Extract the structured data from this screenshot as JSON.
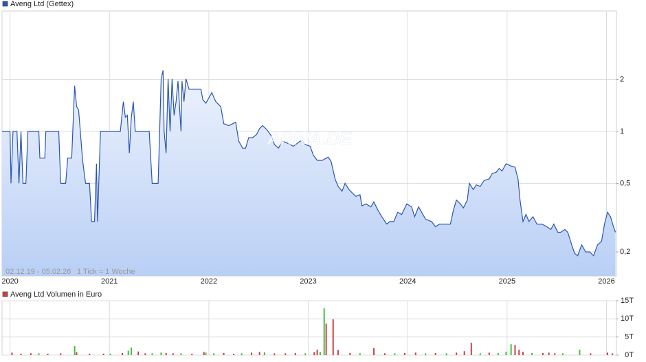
{
  "chart_data": [
    {
      "type": "line",
      "log_scale": true,
      "grid": true,
      "watermark": "ARIVA.DE",
      "annotations": [
        "02.12.19 - 05.02.26",
        "1 Tick = 1 Woche"
      ],
      "xlim": [
        2019.92,
        2026.1
      ],
      "xticks": [
        2020,
        2021,
        2022,
        2023,
        2024,
        2025,
        2026
      ],
      "ylim": [
        0.145,
        5
      ],
      "yticks": [
        {
          "value": 0.2,
          "label": "0,2"
        },
        {
          "value": 0.5,
          "label": "0,5"
        },
        1,
        2
      ],
      "x": [
        2019.92,
        2020.0,
        2020.01,
        2020.03,
        2020.07,
        2020.09,
        2020.11,
        2020.13,
        2020.16,
        2020.18,
        2020.29,
        2020.3,
        2020.35,
        2020.36,
        2020.49,
        2020.51,
        2020.56,
        2020.58,
        2020.62,
        2020.65,
        2020.67,
        2020.69,
        2020.73,
        2020.76,
        2020.8,
        2020.82,
        2020.85,
        2020.87,
        2020.88,
        2020.91,
        2021.11,
        2021.14,
        2021.16,
        2021.18,
        2021.2,
        2021.22,
        2021.24,
        2021.26,
        2021.4,
        2021.43,
        2021.49,
        2021.52,
        2021.54,
        2021.55,
        2021.57,
        2021.59,
        2021.61,
        2021.63,
        2021.65,
        2021.67,
        2021.69,
        2021.72,
        2021.73,
        2021.75,
        2021.77,
        2021.8,
        2021.92,
        2021.94,
        2021.97,
        2022.03,
        2022.07,
        2022.12,
        2022.15,
        2022.2,
        2022.27,
        2022.3,
        2022.34,
        2022.37,
        2022.4,
        2022.44,
        2022.48,
        2022.51,
        2022.54,
        2022.58,
        2022.63,
        2022.66,
        2022.7,
        2022.74,
        2022.8,
        2022.85,
        2022.92,
        2022.97,
        2023.02,
        2023.05,
        2023.09,
        2023.14,
        2023.2,
        2023.23,
        2023.27,
        2023.3,
        2023.34,
        2023.37,
        2023.41,
        2023.46,
        2023.48,
        2023.52,
        2023.54,
        2023.58,
        2023.63,
        2023.66,
        2023.7,
        2023.74,
        2023.79,
        2023.82,
        2023.86,
        2023.88,
        2023.9,
        2023.94,
        2023.99,
        2024.04,
        2024.07,
        2024.11,
        2024.14,
        2024.18,
        2024.24,
        2024.28,
        2024.32,
        2024.36,
        2024.43,
        2024.46,
        2024.49,
        2024.53,
        2024.56,
        2024.6,
        2024.62,
        2024.66,
        2024.69,
        2024.73,
        2024.77,
        2024.82,
        2024.85,
        2024.89,
        2024.92,
        2024.95,
        2024.99,
        2025.04,
        2025.08,
        2025.11,
        2025.13,
        2025.16,
        2025.19,
        2025.22,
        2025.26,
        2025.3,
        2025.35,
        2025.4,
        2025.44,
        2025.47,
        2025.51,
        2025.54,
        2025.58,
        2025.61,
        2025.65,
        2025.68,
        2025.71,
        2025.75,
        2025.79,
        2025.83,
        2025.87,
        2025.91,
        2025.95,
        2025.98,
        2026.01,
        2026.04,
        2026.07,
        2026.09
      ],
      "series": [
        {
          "name": "Aveng Ltd (Gettex)",
          "color": "#2a55b5",
          "values": [
            1,
            1,
            0.5,
            1,
            1,
            0.5,
            1,
            0.5,
            0.5,
            1,
            1,
            0.7,
            0.7,
            1,
            1,
            0.5,
            0.5,
            0.7,
            0.7,
            1.84,
            1.39,
            1.33,
            0.68,
            0.5,
            0.5,
            0.3,
            0.3,
            0.65,
            0.3,
            1,
            1,
            1.49,
            1.21,
            1.24,
            0.75,
            1.21,
            1.49,
            1,
            1,
            0.5,
            0.5,
            2.02,
            2.26,
            1,
            0.75,
            2.02,
            1,
            2.02,
            1.24,
            1.49,
            1.96,
            1,
            1.96,
            1.49,
            2.02,
            1.76,
            1.76,
            1.53,
            1.46,
            1.68,
            1.49,
            1.39,
            1.11,
            1.08,
            1.13,
            0.88,
            0.8,
            0.8,
            0.92,
            0.92,
            0.96,
            1.04,
            1.08,
            1.03,
            0.94,
            0.84,
            0.8,
            0.88,
            0.85,
            0.82,
            0.88,
            0.84,
            0.82,
            0.73,
            0.68,
            0.68,
            0.71,
            0.67,
            0.53,
            0.48,
            0.45,
            0.5,
            0.46,
            0.43,
            0.42,
            0.43,
            0.37,
            0.38,
            0.365,
            0.39,
            0.35,
            0.32,
            0.29,
            0.3,
            0.3,
            0.32,
            0.34,
            0.33,
            0.38,
            0.365,
            0.32,
            0.365,
            0.34,
            0.31,
            0.3,
            0.28,
            0.29,
            0.29,
            0.29,
            0.35,
            0.4,
            0.38,
            0.36,
            0.4,
            0.5,
            0.46,
            0.49,
            0.48,
            0.52,
            0.53,
            0.57,
            0.58,
            0.61,
            0.59,
            0.65,
            0.63,
            0.62,
            0.53,
            0.4,
            0.3,
            0.33,
            0.3,
            0.32,
            0.29,
            0.29,
            0.28,
            0.27,
            0.29,
            0.26,
            0.26,
            0.27,
            0.26,
            0.22,
            0.196,
            0.19,
            0.22,
            0.2,
            0.2,
            0.19,
            0.22,
            0.23,
            0.29,
            0.34,
            0.32,
            0.28,
            0.26
          ]
        }
      ]
    },
    {
      "type": "bar",
      "grid": true,
      "xlim": [
        2019.92,
        2026.1
      ],
      "xticks": [
        2020,
        2021,
        2022,
        2023,
        2024,
        2025,
        2026
      ],
      "ylim": [
        0,
        15000
      ],
      "yticks": [
        {
          "value": 0,
          "label": "0T"
        },
        {
          "value": 5000,
          "label": "5T"
        },
        {
          "value": 10000,
          "label": "10T"
        },
        {
          "value": 15000,
          "label": "15T"
        }
      ],
      "x": [
        2020.02,
        2020.11,
        2020.21,
        2020.29,
        2020.38,
        2020.51,
        2020.65,
        2020.67,
        2020.8,
        2020.94,
        2021.01,
        2021.13,
        2021.19,
        2021.22,
        2021.29,
        2021.36,
        2021.43,
        2021.52,
        2021.57,
        2021.64,
        2021.72,
        2021.83,
        2021.95,
        2021.97,
        2022.05,
        2022.15,
        2022.25,
        2022.33,
        2022.43,
        2022.51,
        2022.56,
        2022.66,
        2022.77,
        2022.87,
        2022.97,
        2023.06,
        2023.09,
        2023.12,
        2023.16,
        2023.18,
        2023.25,
        2023.3,
        2023.42,
        2023.52,
        2023.66,
        2023.77,
        2023.87,
        2023.97,
        2024.08,
        2024.18,
        2024.28,
        2024.39,
        2024.49,
        2024.57,
        2024.64,
        2024.73,
        2024.82,
        2024.91,
        2024.99,
        2025.04,
        2025.08,
        2025.12,
        2025.16,
        2025.25,
        2025.36,
        2025.42,
        2025.48,
        2025.56,
        2025.73,
        2025.84,
        2026.01,
        2026.06
      ],
      "series": [
        {
          "name": "Aveng Ltd Volumen in Euro",
          "color": "#d04040",
          "values": [
            700,
            400,
            500,
            500,
            400,
            500,
            2500,
            800,
            400,
            400,
            400,
            600,
            1200,
            2100,
            1000,
            500,
            500,
            700,
            600,
            500,
            500,
            400,
            900,
            700,
            500,
            600,
            400,
            500,
            700,
            900,
            800,
            500,
            500,
            600,
            500,
            800,
            1500,
            900,
            12900,
            8700,
            9900,
            1400,
            600,
            500,
            1900,
            500,
            500,
            600,
            700,
            500,
            600,
            500,
            700,
            1100,
            3400,
            500,
            700,
            600,
            900,
            3000,
            2800,
            1500,
            900,
            600,
            600,
            700,
            500,
            500,
            1500,
            500,
            700,
            500
          ],
          "bar_colors": [
            "#d04040",
            "#d04040",
            "#d04040",
            "#40c040",
            "#d04040",
            "#d04040",
            "#40c040",
            "#d04040",
            "#d04040",
            "#d04040",
            "#40c040",
            "#d04040",
            "#40c040",
            "#40c040",
            "#d04040",
            "#d04040",
            "#40c040",
            "#40c040",
            "#d04040",
            "#d04040",
            "#40c040",
            "#d04040",
            "#d04040",
            "#40c040",
            "#40c040",
            "#d04040",
            "#d04040",
            "#40c040",
            "#d04040",
            "#d04040",
            "#40c040",
            "#d04040",
            "#d04040",
            "#d04040",
            "#40c040",
            "#d04040",
            "#d04040",
            "#40c040",
            "#40c040",
            "#d04040",
            "#d04040",
            "#d04040",
            "#d04040",
            "#40c040",
            "#d04040",
            "#d04040",
            "#40c040",
            "#d04040",
            "#d04040",
            "#40c040",
            "#d04040",
            "#40c040",
            "#d04040",
            "#d04040",
            "#d04040",
            "#40c040",
            "#d04040",
            "#40c040",
            "#40c040",
            "#40c040",
            "#d04040",
            "#d04040",
            "#d04040",
            "#40c040",
            "#d04040",
            "#d04040",
            "#d04040",
            "#40c040",
            "#40c040",
            "#d04040",
            "#d04040",
            "#d04040"
          ]
        }
      ]
    }
  ]
}
